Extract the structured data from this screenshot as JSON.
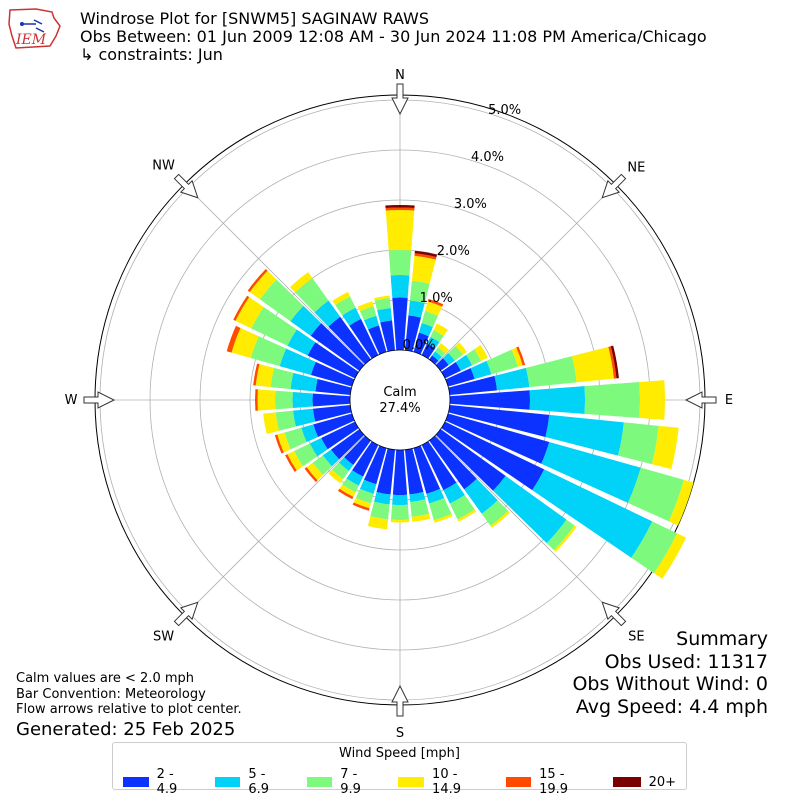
{
  "header": {
    "title": "Windrose Plot for [SNWM5] SAGINAW RAWS",
    "subtitle": "Obs Between: 01 Jun 2009 12:08 AM - 30 Jun 2024 11:08 PM America/Chicago",
    "constraints": "↳ constraints: Jun"
  },
  "logo": {
    "text": "IEM",
    "icon": "iowa-state-outline-icon"
  },
  "notes": {
    "line1": "Calm values are < 2.0 mph",
    "line2": "Bar Convention: Meteorology",
    "line3": "Flow arrows relative to plot center.",
    "generated": "Generated: 25 Feb 2025"
  },
  "summary": {
    "title": "Summary",
    "obs_used": "Obs Used: 11317",
    "obs_without_wind": "Obs Without Wind: 0",
    "avg_speed": "Avg Speed: 4.4 mph"
  },
  "legend": {
    "title": "Wind Speed [mph]",
    "items": [
      {
        "label": "2 - 4.9",
        "color": "#0b32ff"
      },
      {
        "label": "5 - 6.9",
        "color": "#00d2f8"
      },
      {
        "label": "7 - 9.9",
        "color": "#7dfa7d"
      },
      {
        "label": "10 - 14.9",
        "color": "#ffec00"
      },
      {
        "label": "15 - 19.9",
        "color": "#ff4a00"
      },
      {
        "label": "20+",
        "color": "#7a0000"
      }
    ]
  },
  "chart_data": {
    "type": "windrose",
    "title": "Windrose Plot for [SNWM5] SAGINAW RAWS",
    "calm_label": "Calm",
    "calm_percent": "27.4%",
    "radial_ticks": [
      "0.0%",
      "1.0%",
      "2.0%",
      "3.0%",
      "4.0%",
      "5.0%"
    ],
    "radial_range": [
      0,
      5.0
    ],
    "grid": true,
    "compass_labels": [
      "N",
      "NE",
      "E",
      "SE",
      "S",
      "SW",
      "W",
      "NW"
    ],
    "speed_bins": [
      "2 - 4.9",
      "5 - 6.9",
      "7 - 9.9",
      "10 - 14.9",
      "15 - 19.9",
      "20+"
    ],
    "directions_deg": [
      0,
      10,
      20,
      30,
      40,
      50,
      60,
      70,
      80,
      90,
      100,
      110,
      120,
      130,
      140,
      150,
      160,
      170,
      180,
      190,
      200,
      210,
      220,
      230,
      240,
      250,
      260,
      270,
      280,
      290,
      300,
      310,
      320,
      330,
      340,
      350
    ],
    "cumulative_percent": [
      [
        1.05,
        1.5,
        2.0,
        2.8,
        2.85,
        2.9
      ],
      [
        0.7,
        1.0,
        1.4,
        1.9,
        1.95,
        2.0
      ],
      [
        0.4,
        0.6,
        0.85,
        1.05,
        1.1,
        1.1
      ],
      [
        0.25,
        0.4,
        0.55,
        0.7,
        0.7,
        0.7
      ],
      [
        0.1,
        0.2,
        0.3,
        0.4,
        0.4,
        0.4
      ],
      [
        0.2,
        0.35,
        0.55,
        0.65,
        0.65,
        0.65
      ],
      [
        0.35,
        0.6,
        0.8,
        0.95,
        0.95,
        0.95
      ],
      [
        0.55,
        0.9,
        1.45,
        1.55,
        1.6,
        1.6
      ],
      [
        0.95,
        1.6,
        2.55,
        3.3,
        3.35,
        3.4
      ],
      [
        1.6,
        2.7,
        3.8,
        4.3,
        4.3,
        4.3
      ],
      [
        2.0,
        3.5,
        4.2,
        4.6,
        4.6,
        4.6
      ],
      [
        2.1,
        4.0,
        4.9,
        5.1,
        5.1,
        5.1
      ],
      [
        2.2,
        4.6,
        5.15,
        5.35,
        5.35,
        5.35
      ],
      [
        1.6,
        3.1,
        3.3,
        3.35,
        3.35,
        3.35
      ],
      [
        1.2,
        1.8,
        2.1,
        2.15,
        2.15,
        2.15
      ],
      [
        1.0,
        1.3,
        1.65,
        1.7,
        1.7,
        1.7
      ],
      [
        0.95,
        1.15,
        1.5,
        1.55,
        1.55,
        1.55
      ],
      [
        0.9,
        1.05,
        1.35,
        1.45,
        1.45,
        1.45
      ],
      [
        0.9,
        1.1,
        1.4,
        1.45,
        1.45,
        1.45
      ],
      [
        0.9,
        1.1,
        1.4,
        1.6,
        1.6,
        1.6
      ],
      [
        0.75,
        0.95,
        1.15,
        1.25,
        1.3,
        1.3
      ],
      [
        0.7,
        0.9,
        1.05,
        1.15,
        1.2,
        1.2
      ],
      [
        0.6,
        0.75,
        0.95,
        1.05,
        1.05,
        1.05
      ],
      [
        0.7,
        0.9,
        1.15,
        1.3,
        1.35,
        1.35
      ],
      [
        0.75,
        1.0,
        1.35,
        1.5,
        1.55,
        1.55
      ],
      [
        0.8,
        1.05,
        1.4,
        1.55,
        1.6,
        1.6
      ],
      [
        0.75,
        1.15,
        1.5,
        1.75,
        1.75,
        1.75
      ],
      [
        0.75,
        1.15,
        1.5,
        1.85,
        1.9,
        1.9
      ],
      [
        0.7,
        1.2,
        1.6,
        1.9,
        1.95,
        1.95
      ],
      [
        0.85,
        1.5,
        2.1,
        2.5,
        2.6,
        2.6
      ],
      [
        1.05,
        1.5,
        2.3,
        2.65,
        2.7,
        2.7
      ],
      [
        1.2,
        1.7,
        2.45,
        2.7,
        2.75,
        2.75
      ],
      [
        1.05,
        1.45,
        2.0,
        2.15,
        2.15,
        2.15
      ],
      [
        0.8,
        1.05,
        1.3,
        1.4,
        1.4,
        1.4
      ],
      [
        0.55,
        0.75,
        0.95,
        1.05,
        1.05,
        1.05
      ],
      [
        0.6,
        0.85,
        1.05,
        1.1,
        1.1,
        1.1
      ]
    ]
  }
}
